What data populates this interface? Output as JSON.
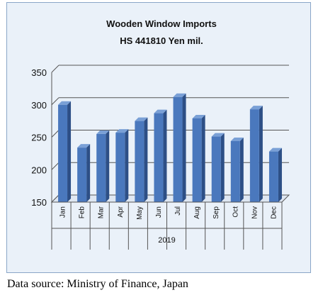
{
  "chart_data": {
    "type": "bar",
    "title": "Wooden Window Imports",
    "subtitle": "HS 441810 Yen mil.",
    "categories": [
      "Jan",
      "Feb",
      "Mar",
      "Apr",
      "May",
      "Jun",
      "Jul",
      "Aug",
      "Sep",
      "Oct",
      "Nov",
      "Dec"
    ],
    "values": [
      300,
      234,
      255,
      257,
      275,
      287,
      312,
      279,
      251,
      244,
      293,
      228
    ],
    "ylim": [
      150,
      350
    ],
    "yticks": [
      "150",
      "200",
      "250",
      "300",
      "350"
    ],
    "group_label": "2019",
    "grid": true,
    "bar_color": "#4a78bd",
    "bar_side_color": "#2d4f86",
    "bar_top_color": "#7aa0d6"
  },
  "source": "Data source: Ministry of Finance, Japan"
}
